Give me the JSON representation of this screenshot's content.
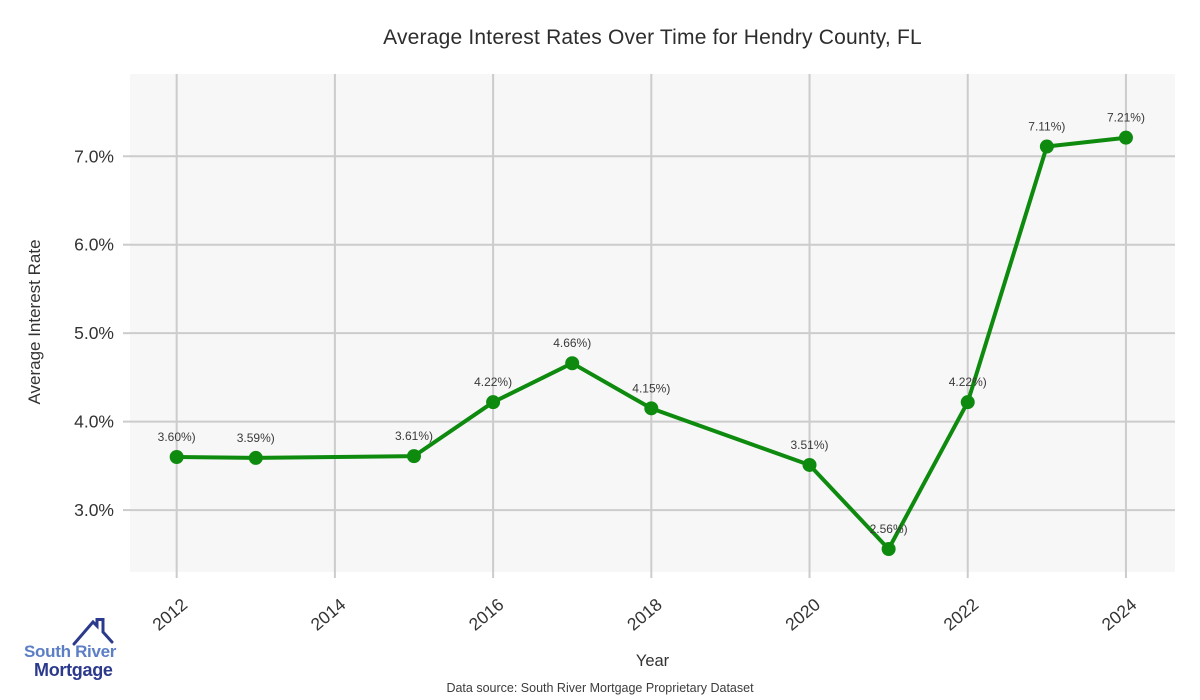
{
  "chart_data": {
    "type": "line",
    "title": "Average Interest Rates Over Time for Hendry County, FL",
    "xlabel": "Year",
    "ylabel": "Average Interest Rate",
    "x": [
      2012,
      2013,
      2015,
      2016,
      2017,
      2018,
      2020,
      2021,
      2022,
      2023,
      2024
    ],
    "values": [
      3.6,
      3.59,
      3.61,
      4.22,
      4.66,
      4.15,
      3.51,
      2.56,
      4.22,
      7.11,
      7.21
    ],
    "point_labels": [
      "3.60%)",
      "3.59%)",
      "3.61%)",
      "4.22%)",
      "4.66%)",
      "4.15%)",
      "3.51%)",
      "2.56%)",
      "4.22%)",
      "7.11%)",
      "7.21%)"
    ],
    "x_tick_values": [
      2012,
      2014,
      2016,
      2018,
      2020,
      2022,
      2024
    ],
    "x_tick_labels": [
      "2012",
      "2014",
      "2016",
      "2018",
      "2020",
      "2022",
      "2024"
    ],
    "y_tick_values": [
      3,
      4,
      5,
      6,
      7
    ],
    "y_tick_labels": [
      "3.0%",
      "4.0%",
      "5.0%",
      "6.0%",
      "7.0%"
    ],
    "xlim": [
      2011.41,
      2024.62
    ],
    "ylim": [
      2.3,
      7.93
    ],
    "grid": true,
    "legend": "none",
    "line_color": "#0e8b0e",
    "marker_color": "#0e8b0e",
    "plot_bg": "#f7f7f8",
    "grid_color": "#cccccc",
    "tick_text_color": "#333333",
    "label_text_color": "#3a3a3a"
  },
  "footer": {
    "source": "Data source: South River Mortgage Proprietary Dataset"
  },
  "logo": {
    "line1": "South River",
    "line2": "Mortgage",
    "color1": "#5b7ec5",
    "color2": "#2c3a8c"
  }
}
